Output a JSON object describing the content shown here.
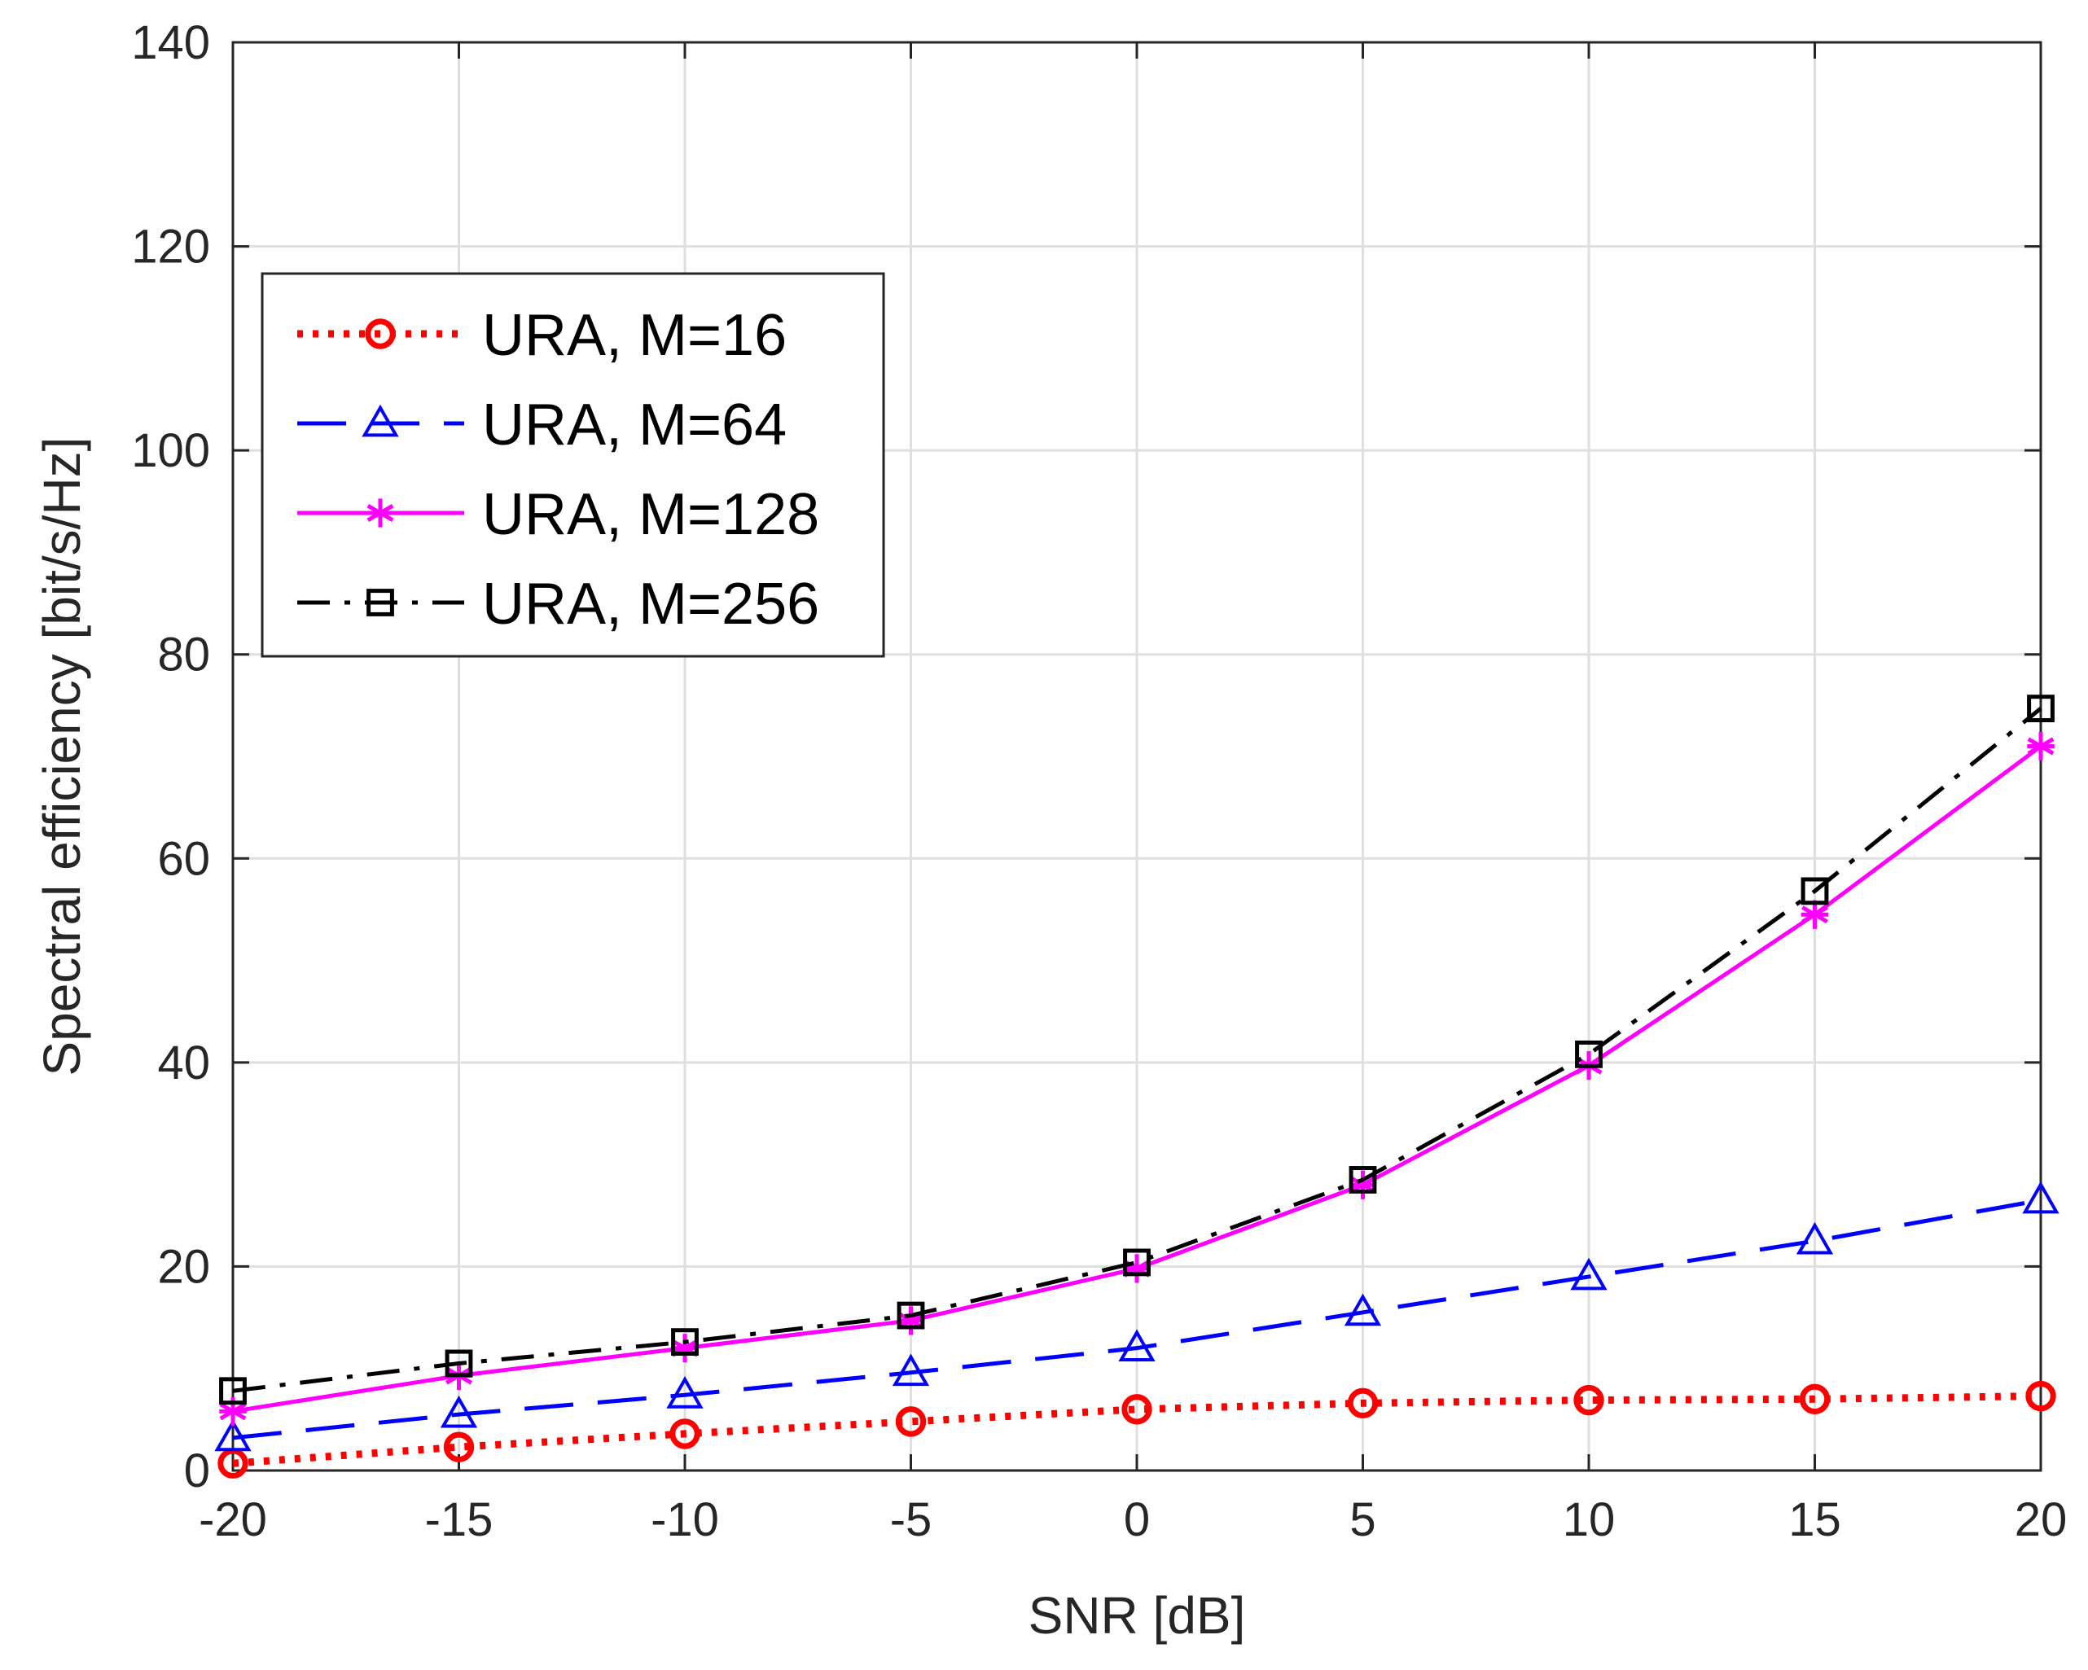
{
  "chart_data": {
    "type": "line",
    "title": "",
    "xlabel": "SNR [dB]",
    "ylabel": "Spectral efficiency [bit/s/Hz]",
    "xlim": [
      -20,
      20
    ],
    "ylim": [
      0,
      140
    ],
    "grid": true,
    "legend_position": "top-left",
    "x": [
      -20,
      -15,
      -10,
      -5,
      0,
      5,
      10,
      15,
      20
    ],
    "x_tick_labels": [
      "-20",
      "-15",
      "-10",
      "-5",
      "0",
      "5",
      "10",
      "15",
      "20"
    ],
    "y_tick_values": [
      0,
      20,
      40,
      60,
      80,
      100,
      120,
      140
    ],
    "y_tick_labels": [
      "0",
      "20",
      "40",
      "60",
      "80",
      "100",
      "120",
      "140"
    ],
    "series": [
      {
        "name": "URA, M=16",
        "color": "#ff0000",
        "line_style": "dotted",
        "marker": "circle",
        "values": [
          0.7,
          2.3,
          3.6,
          4.8,
          6.0,
          6.6,
          6.9,
          7.0,
          7.3
        ]
      },
      {
        "name": "URA, M=64",
        "color": "#0000ff",
        "line_style": "dashed",
        "marker": "triangle",
        "values": [
          3.2,
          5.5,
          7.4,
          9.6,
          12.0,
          15.5,
          19.0,
          22.5,
          26.5
        ]
      },
      {
        "name": "URA, M=128",
        "color": "#ff00ff",
        "line_style": "solid",
        "marker": "asterisk",
        "values": [
          5.8,
          9.3,
          12.0,
          14.7,
          19.8,
          28.0,
          39.7,
          54.5,
          71.0
        ]
      },
      {
        "name": "URA, M=256",
        "color": "#000000",
        "line_style": "dash-dot",
        "marker": "square",
        "values": [
          7.8,
          10.5,
          12.6,
          15.2,
          20.4,
          28.5,
          40.8,
          56.8,
          74.7
        ]
      }
    ]
  }
}
